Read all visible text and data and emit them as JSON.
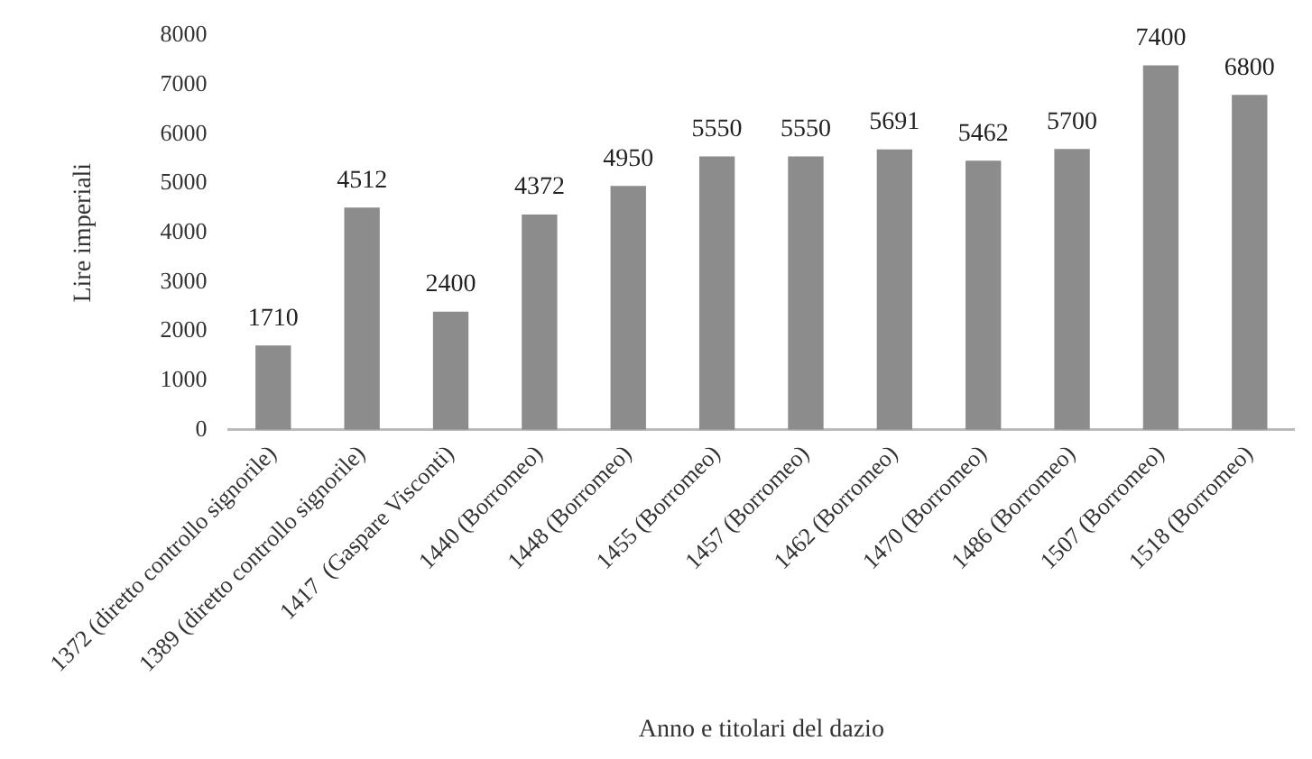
{
  "chart_data": {
    "type": "bar",
    "xlabel": "Anno e titolari del dazio",
    "ylabel": "Lire imperiali",
    "categories": [
      "1372 (diretto controllo signorile)",
      "1389 (diretto controllo signorile)",
      "1417  (Gaspare Visconti)",
      "1440 (Borromeo)",
      "1448 (Borromeo)",
      "1455 (Borromeo)",
      "1457 (Borromeo)",
      "1462 (Borromeo)",
      "1470 (Borromeo)",
      "1486 (Borromeo)",
      "1507 (Borromeo)",
      "1518 (Borromeo)"
    ],
    "values": [
      1710,
      4512,
      2400,
      4372,
      4950,
      5550,
      5550,
      5691,
      5462,
      5700,
      7400,
      6800
    ],
    "color": "#8c8c8c",
    "ylim": [
      0,
      8000
    ],
    "yticks": [
      0,
      1000,
      2000,
      3000,
      4000,
      5000,
      6000,
      7000,
      8000
    ],
    "grid": false,
    "legend": false,
    "data_labels": true
  }
}
